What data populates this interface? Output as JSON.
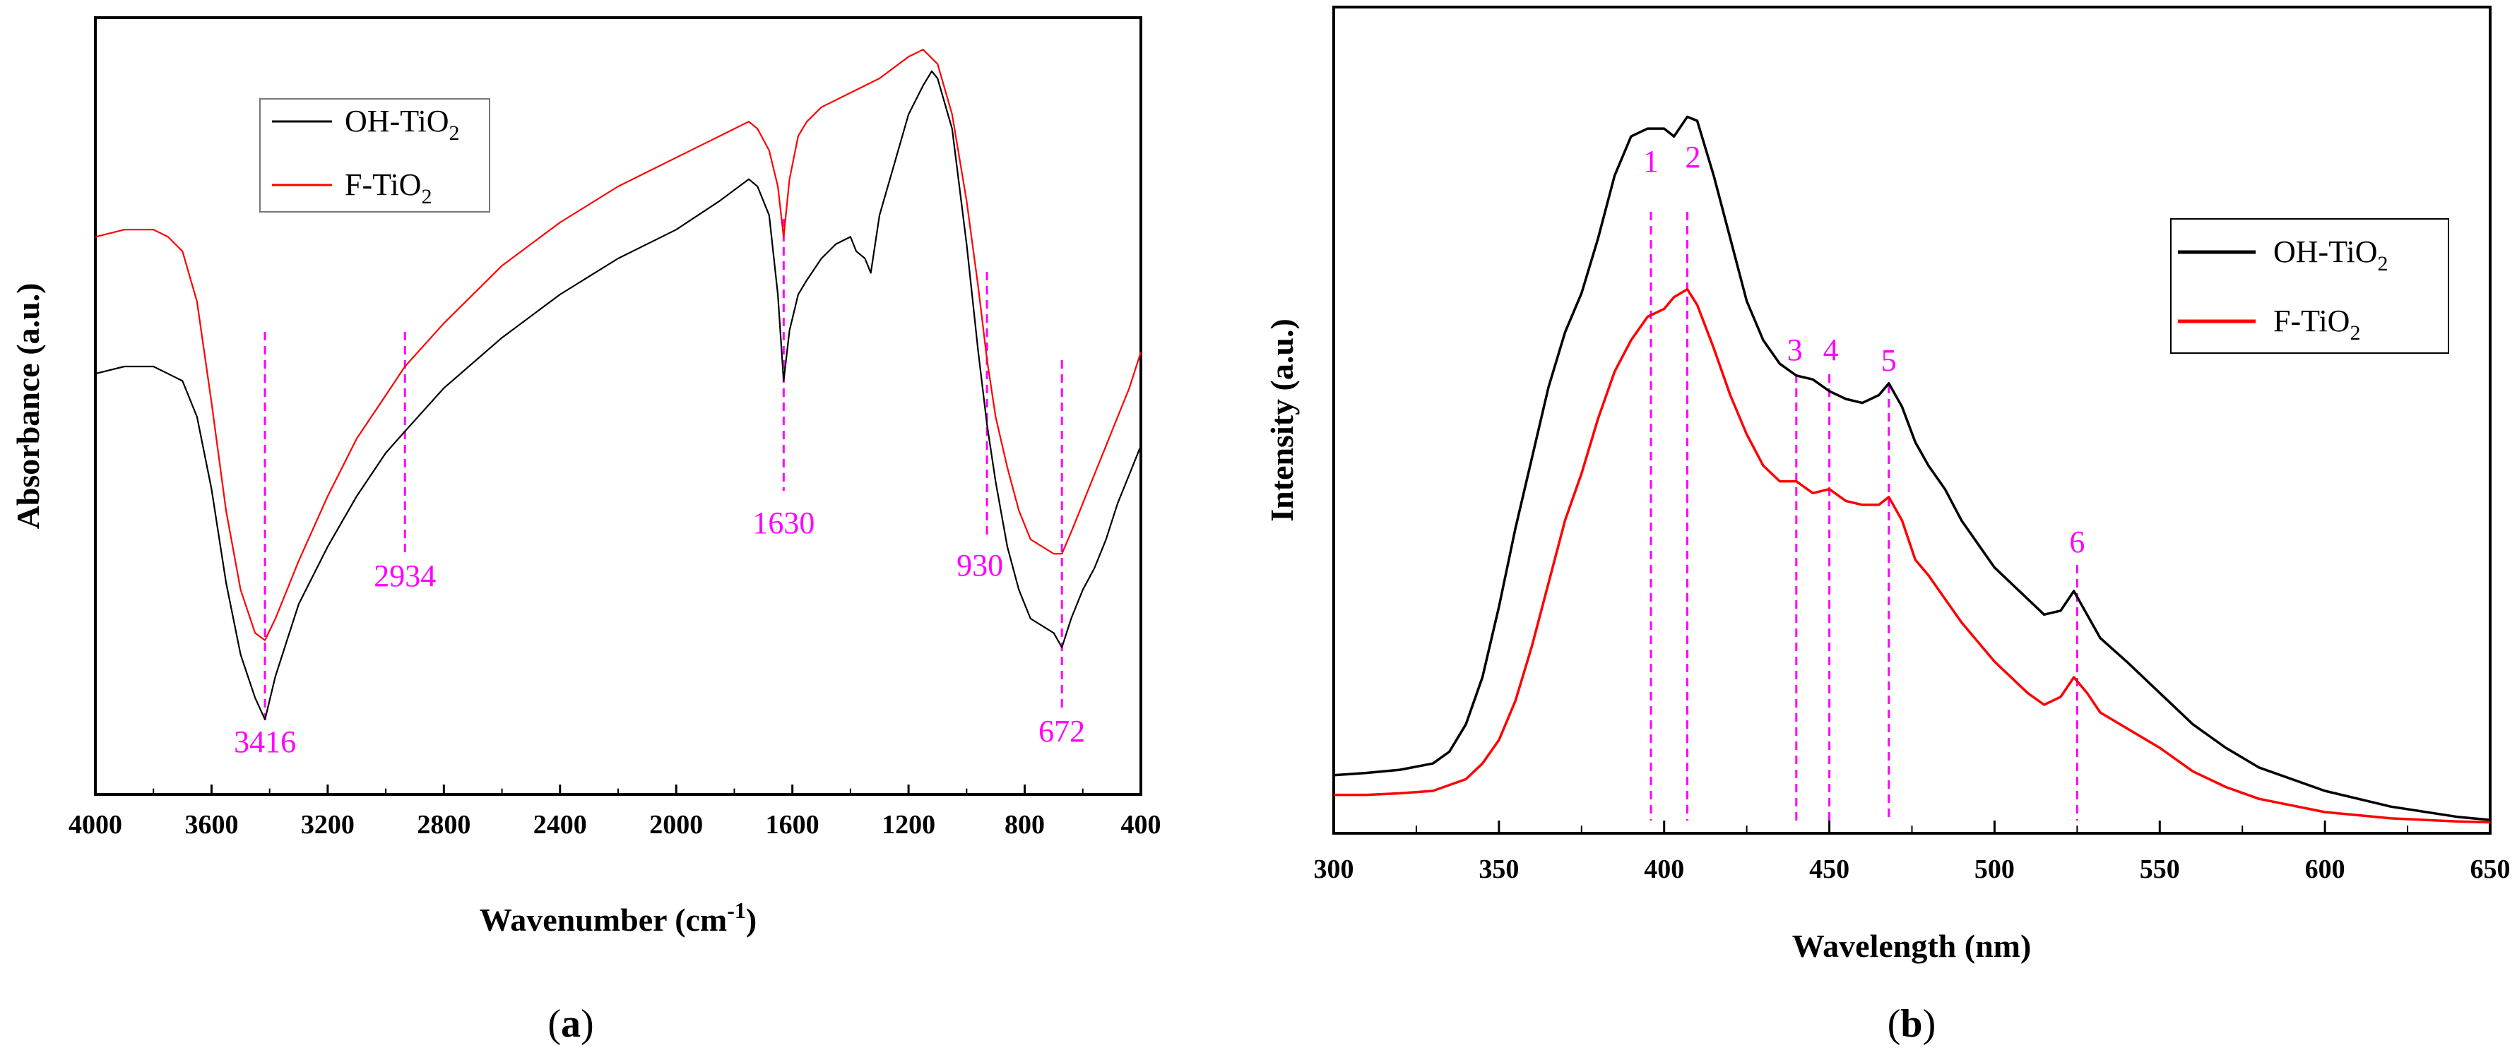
{
  "colors": {
    "black_series": "#000000",
    "red_series": "#ff0000",
    "markers": "#ff00ff"
  },
  "panel_a": {
    "label_open": "(",
    "label_letter": "a",
    "label_close": ")"
  },
  "panel_b": {
    "label_open": "(",
    "label_letter": "b",
    "label_close": ")"
  },
  "chart_data": [
    {
      "type": "line",
      "panel": "a",
      "xlabel_main": "Wavenumber (cm",
      "xlabel_sup": "-1",
      "xlabel_end": ")",
      "ylabel": "Absorbance (a.u.)",
      "xlim": [
        4000,
        400
      ],
      "ylim": [
        0,
        1
      ],
      "xticks": [
        4000,
        3600,
        3200,
        2800,
        2400,
        2000,
        1600,
        1200,
        800,
        400
      ],
      "x_reversed": true,
      "legend_position": "top-left",
      "series": [
        {
          "name": "OH-TiO",
          "subscript": "2",
          "color": "#000000",
          "x": [
            4000,
            3900,
            3800,
            3750,
            3700,
            3650,
            3600,
            3550,
            3500,
            3450,
            3416,
            3380,
            3300,
            3200,
            3100,
            3000,
            2934,
            2800,
            2600,
            2400,
            2200,
            2000,
            1850,
            1750,
            1720,
            1680,
            1650,
            1630,
            1610,
            1580,
            1550,
            1500,
            1450,
            1400,
            1380,
            1350,
            1330,
            1300,
            1250,
            1200,
            1150,
            1120,
            1100,
            1050,
            1000,
            960,
            930,
            900,
            860,
            820,
            780,
            740,
            700,
            672,
            640,
            600,
            560,
            520,
            480,
            440,
            400
          ],
          "y": [
            0.54,
            0.55,
            0.55,
            0.54,
            0.53,
            0.48,
            0.38,
            0.25,
            0.15,
            0.09,
            0.06,
            0.12,
            0.22,
            0.3,
            0.37,
            0.43,
            0.46,
            0.52,
            0.59,
            0.65,
            0.7,
            0.74,
            0.78,
            0.81,
            0.8,
            0.76,
            0.65,
            0.53,
            0.6,
            0.65,
            0.67,
            0.7,
            0.72,
            0.73,
            0.71,
            0.7,
            0.68,
            0.76,
            0.83,
            0.9,
            0.94,
            0.96,
            0.95,
            0.88,
            0.72,
            0.57,
            0.47,
            0.39,
            0.3,
            0.24,
            0.2,
            0.19,
            0.18,
            0.16,
            0.2,
            0.24,
            0.27,
            0.31,
            0.36,
            0.4,
            0.44
          ]
        },
        {
          "name": "F-TiO",
          "subscript": "2",
          "color": "#ff0000",
          "x": [
            4000,
            3900,
            3800,
            3750,
            3700,
            3650,
            3600,
            3550,
            3500,
            3450,
            3416,
            3380,
            3300,
            3200,
            3100,
            3000,
            2934,
            2800,
            2600,
            2400,
            2200,
            2000,
            1850,
            1750,
            1720,
            1680,
            1650,
            1630,
            1610,
            1580,
            1550,
            1500,
            1400,
            1300,
            1200,
            1150,
            1100,
            1050,
            1000,
            960,
            930,
            900,
            860,
            820,
            780,
            740,
            700,
            672,
            640,
            600,
            560,
            520,
            480,
            440,
            400
          ],
          "y": [
            0.73,
            0.74,
            0.74,
            0.73,
            0.71,
            0.64,
            0.5,
            0.35,
            0.24,
            0.18,
            0.17,
            0.2,
            0.28,
            0.37,
            0.45,
            0.51,
            0.55,
            0.61,
            0.69,
            0.75,
            0.8,
            0.84,
            0.87,
            0.89,
            0.88,
            0.85,
            0.8,
            0.73,
            0.81,
            0.87,
            0.89,
            0.91,
            0.93,
            0.95,
            0.98,
            0.99,
            0.97,
            0.9,
            0.78,
            0.66,
            0.56,
            0.48,
            0.41,
            0.35,
            0.31,
            0.3,
            0.29,
            0.29,
            0.32,
            0.36,
            0.4,
            0.44,
            0.48,
            0.52,
            0.57
          ]
        }
      ],
      "markers": [
        {
          "x": 3416,
          "label": "3416",
          "label_pos": "below"
        },
        {
          "x": 2934,
          "label": "2934",
          "label_pos": "below"
        },
        {
          "x": 1630,
          "label": "1630",
          "label_pos": "below"
        },
        {
          "x": 930,
          "label": "930",
          "label_pos": "below"
        },
        {
          "x": 672,
          "label": "672",
          "label_pos": "below"
        }
      ]
    },
    {
      "type": "line",
      "panel": "b",
      "xlabel": "Wavelength (nm)",
      "ylabel": "Intensity (a.u.)",
      "xlim": [
        300,
        650
      ],
      "ylim": [
        0,
        1
      ],
      "xticks": [
        300,
        350,
        400,
        450,
        500,
        550,
        600,
        650
      ],
      "legend_position": "top-right",
      "series": [
        {
          "name": "OH-TiO",
          "subscript": "2",
          "color": "#000000",
          "x": [
            300,
            310,
            320,
            330,
            335,
            340,
            345,
            350,
            355,
            360,
            365,
            370,
            375,
            380,
            385,
            390,
            395,
            400,
            403,
            407,
            410,
            415,
            420,
            425,
            430,
            435,
            440,
            445,
            450,
            455,
            460,
            465,
            468,
            472,
            476,
            480,
            485,
            490,
            500,
            510,
            515,
            520,
            524,
            528,
            532,
            540,
            550,
            560,
            570,
            580,
            600,
            620,
            640,
            650
          ],
          "y": [
            0.065,
            0.068,
            0.072,
            0.08,
            0.095,
            0.13,
            0.19,
            0.28,
            0.38,
            0.47,
            0.56,
            0.63,
            0.68,
            0.75,
            0.83,
            0.88,
            0.89,
            0.89,
            0.88,
            0.905,
            0.9,
            0.83,
            0.75,
            0.67,
            0.62,
            0.59,
            0.575,
            0.57,
            0.555,
            0.545,
            0.54,
            0.55,
            0.565,
            0.535,
            0.49,
            0.46,
            0.43,
            0.39,
            0.33,
            0.29,
            0.27,
            0.275,
            0.3,
            0.27,
            0.24,
            0.21,
            0.17,
            0.13,
            0.1,
            0.075,
            0.045,
            0.025,
            0.012,
            0.008
          ]
        },
        {
          "name": "F-TiO",
          "subscript": "2",
          "color": "#ff0000",
          "x": [
            300,
            310,
            320,
            330,
            340,
            345,
            350,
            355,
            360,
            365,
            370,
            375,
            380,
            385,
            390,
            395,
            400,
            403,
            407,
            410,
            415,
            420,
            425,
            430,
            435,
            440,
            445,
            450,
            455,
            460,
            465,
            468,
            472,
            476,
            480,
            485,
            490,
            500,
            510,
            515,
            520,
            524,
            528,
            532,
            540,
            550,
            560,
            570,
            580,
            600,
            620,
            640,
            650
          ],
          "y": [
            0.04,
            0.04,
            0.042,
            0.045,
            0.06,
            0.08,
            0.11,
            0.16,
            0.23,
            0.31,
            0.39,
            0.45,
            0.52,
            0.58,
            0.62,
            0.65,
            0.66,
            0.675,
            0.685,
            0.665,
            0.61,
            0.55,
            0.5,
            0.46,
            0.44,
            0.44,
            0.425,
            0.43,
            0.415,
            0.41,
            0.41,
            0.42,
            0.39,
            0.34,
            0.32,
            0.29,
            0.26,
            0.21,
            0.17,
            0.155,
            0.165,
            0.19,
            0.17,
            0.145,
            0.125,
            0.1,
            0.07,
            0.05,
            0.035,
            0.018,
            0.01,
            0.006,
            0.005
          ]
        }
      ],
      "markers": [
        {
          "x": 396,
          "label": "1",
          "label_pos": "above"
        },
        {
          "x": 407,
          "label": "2",
          "label_pos": "above"
        },
        {
          "x": 440,
          "label": "3",
          "label_pos": "above"
        },
        {
          "x": 450,
          "label": "4",
          "label_pos": "above"
        },
        {
          "x": 468,
          "label": "5",
          "label_pos": "above"
        },
        {
          "x": 525,
          "label": "6",
          "label_pos": "above"
        }
      ]
    }
  ]
}
